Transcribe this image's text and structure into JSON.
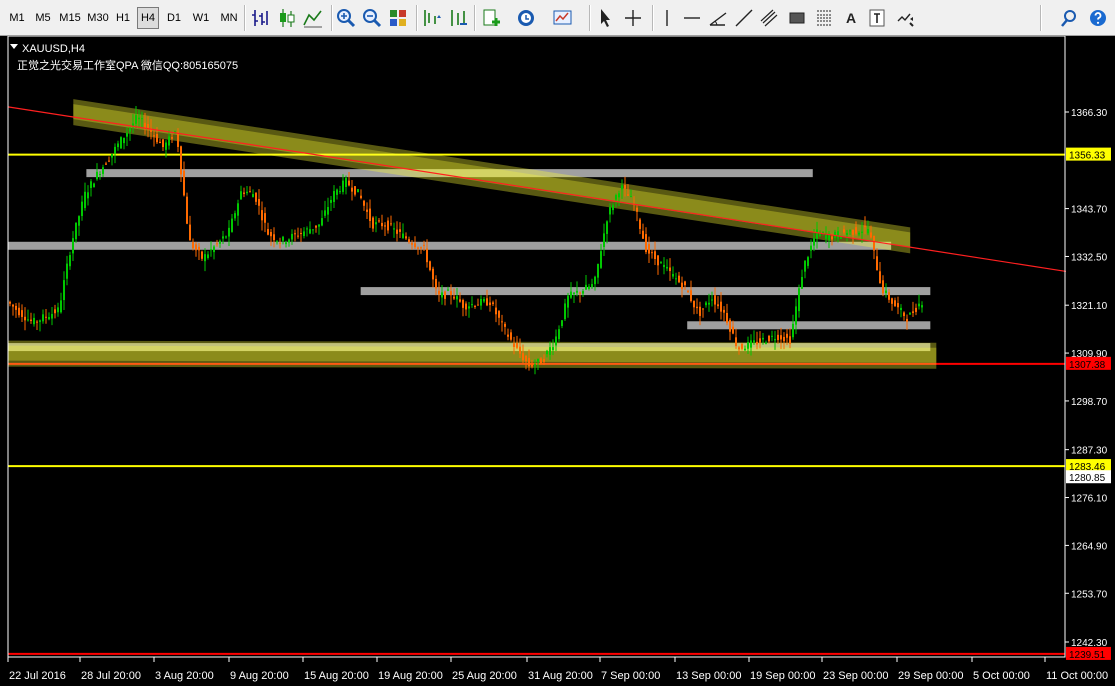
{
  "toolbar": {
    "timeframes": [
      {
        "label": "M1",
        "active": false
      },
      {
        "label": "M5",
        "active": false
      },
      {
        "label": "M15",
        "active": false
      },
      {
        "label": "M30",
        "active": false
      },
      {
        "label": "H1",
        "active": false
      },
      {
        "label": "H4",
        "active": true
      },
      {
        "label": "D1",
        "active": false
      },
      {
        "label": "W1",
        "active": false
      },
      {
        "label": "MN",
        "active": false
      }
    ],
    "tools": [
      "bar-chart-icon",
      "candlestick-icon",
      "line-chart-icon",
      "zoom-in-icon",
      "zoom-out-icon",
      "tile-windows-icon",
      "chart-shift-icon",
      "auto-scroll-icon",
      "indicators-icon",
      "periods-icon",
      "templates-icon",
      "cursor-icon",
      "crosshair-icon",
      "vertical-line-icon",
      "horizontal-line-icon",
      "angle-line-icon",
      "trend-line-icon",
      "equidistant-channel-icon",
      "rectangle-icon",
      "fibonacci-icon",
      "text-icon",
      "text-label-icon",
      "arrows-icon",
      "search-icon",
      "help-icon"
    ],
    "text_tool_glyph": "A"
  },
  "chart_data": {
    "type": "candlestick",
    "symbol_title": "XAUUSD,H4",
    "watermark_text": "正觉之光交易工作室QPA 微信QQ:805165075",
    "y_ticks": [
      "1366.30",
      "1343.70",
      "1332.50",
      "1321.10",
      "1309.90",
      "1298.70",
      "1287.30",
      "1276.10",
      "1264.90",
      "1253.70",
      "1242.30"
    ],
    "x_ticks": [
      "22 Jul 2016",
      "28 Jul 20:00",
      "3 Aug 20:00",
      "9 Aug 20:00",
      "15 Aug 20:00",
      "19 Aug 20:00",
      "25 Aug 20:00",
      "31 Aug 20:00",
      "7 Sep 00:00",
      "13 Sep 00:00",
      "19 Sep 00:00",
      "23 Sep 00:00",
      "29 Sep 00:00",
      "5 Oct 00:00",
      "11 Oct 00:00"
    ],
    "price_tags": [
      {
        "value": "1356.33",
        "bg": "#ffff00",
        "color": "#000000"
      },
      {
        "value": "1307.38",
        "bg": "#ff0000",
        "color": "#000000"
      },
      {
        "value": "1283.46",
        "bg": "#ffff00",
        "color": "#000000"
      },
      {
        "value": "1280.85",
        "bg": "#ffffff",
        "color": "#000000"
      },
      {
        "value": "1239.51",
        "bg": "#ff0000",
        "color": "#000000"
      }
    ],
    "horizontal_lines": [
      {
        "price": 1356.33,
        "color": "#ffff00"
      },
      {
        "price": 1307.38,
        "color": "#ff0000"
      },
      {
        "price": 1283.46,
        "color": "#ffff00"
      },
      {
        "price": 1239.51,
        "color": "#ff0000"
      }
    ],
    "support_resistance_zones": [
      {
        "price": 1352.0,
        "from": "28 Jul 2016",
        "to": "21 Sep 2016",
        "color": "#a0a0a0"
      },
      {
        "price": 1335.0,
        "from": "22 Jul 2016",
        "to": "27 Sep 2016",
        "color": "#a0a0a0"
      },
      {
        "price": 1324.4,
        "from": "18 Aug 2016",
        "to": "30 Sep 2016",
        "color": "#a0a0a0"
      },
      {
        "price": 1316.4,
        "from": "12 Sep 2016",
        "to": "30 Sep 2016",
        "color": "#a0a0a0"
      },
      {
        "price": 1311.3,
        "from": "22 Jul 2016",
        "to": "30 Sep 2016",
        "color": "#a0a0a0"
      }
    ],
    "trend_line": {
      "from": {
        "date": "22 Jul 2016",
        "price": 1367.5
      },
      "to": {
        "date": "11 Oct 2016",
        "price": 1329.0
      },
      "color": "#ff2020"
    },
    "channel_highlights": [
      {
        "from": {
          "date": "27 Jul 2016",
          "price": 1366.5
        },
        "to": {
          "date": "28 Sep 2016",
          "price": 1336.5
        },
        "color": "#ffff33"
      },
      {
        "from": {
          "date": "22 Jul 2016",
          "price": 1310.0
        },
        "to": {
          "date": "30 Sep 2016",
          "price": 1309.5
        },
        "color": "#ffff33"
      }
    ],
    "colors": {
      "bull": "#00c800",
      "bear": "#ff6a00",
      "background": "#000000",
      "axis": "#ffffff"
    },
    "ohlc_close_path": [
      {
        "date": "22 Jul 2016",
        "price": 1322
      },
      {
        "date": "24 Jul 2016",
        "price": 1317
      },
      {
        "date": "26 Jul 2016",
        "price": 1320
      },
      {
        "date": "27 Jul 2016",
        "price": 1336
      },
      {
        "date": "28 Jul 2016",
        "price": 1347
      },
      {
        "date": "29 Jul 2016",
        "price": 1352
      },
      {
        "date": "1 Aug 2016",
        "price": 1365
      },
      {
        "date": "2 Aug 2016",
        "price": 1362
      },
      {
        "date": "3 Aug 2016",
        "price": 1358
      },
      {
        "date": "4 Aug 2016",
        "price": 1362
      },
      {
        "date": "5 Aug 2016",
        "price": 1336
      },
      {
        "date": "6 Aug 2016",
        "price": 1332
      },
      {
        "date": "8 Aug 2016",
        "price": 1338
      },
      {
        "date": "9 Aug 2016",
        "price": 1348
      },
      {
        "date": "10 Aug 2016",
        "price": 1347
      },
      {
        "date": "11 Aug 2016",
        "price": 1338
      },
      {
        "date": "12 Aug 2016",
        "price": 1336
      },
      {
        "date": "15 Aug 2016",
        "price": 1340
      },
      {
        "date": "16 Aug 2016",
        "price": 1347
      },
      {
        "date": "17 Aug 2016",
        "price": 1350
      },
      {
        "date": "18 Aug 2016",
        "price": 1347
      },
      {
        "date": "19 Aug 2016",
        "price": 1340
      },
      {
        "date": "20 Aug 2016",
        "price": 1340
      },
      {
        "date": "22 Aug 2016",
        "price": 1336
      },
      {
        "date": "23 Aug 2016",
        "price": 1334
      },
      {
        "date": "24 Aug 2016",
        "price": 1323
      },
      {
        "date": "25 Aug 2016",
        "price": 1324
      },
      {
        "date": "26 Aug 2016",
        "price": 1321
      },
      {
        "date": "28 Aug 2016",
        "price": 1322
      },
      {
        "date": "29 Aug 2016",
        "price": 1316
      },
      {
        "date": "30 Aug 2016",
        "price": 1311
      },
      {
        "date": "31 Aug 2016",
        "price": 1307
      },
      {
        "date": "1 Sep 2016",
        "price": 1308
      },
      {
        "date": "2 Sep 2016",
        "price": 1313
      },
      {
        "date": "3 Sep 2016",
        "price": 1323
      },
      {
        "date": "5 Sep 2016",
        "price": 1326
      },
      {
        "date": "6 Sep 2016",
        "price": 1342
      },
      {
        "date": "7 Sep 2016",
        "price": 1349
      },
      {
        "date": "8 Sep 2016",
        "price": 1345
      },
      {
        "date": "9 Sep 2016",
        "price": 1334
      },
      {
        "date": "11 Sep 2016",
        "price": 1328
      },
      {
        "date": "12 Sep 2016",
        "price": 1325
      },
      {
        "date": "13 Sep 2016",
        "price": 1319
      },
      {
        "date": "14 Sep 2016",
        "price": 1323
      },
      {
        "date": "15 Sep 2016",
        "price": 1319
      },
      {
        "date": "16 Sep 2016",
        "price": 1311
      },
      {
        "date": "17 Sep 2016",
        "price": 1312
      },
      {
        "date": "19 Sep 2016",
        "price": 1314
      },
      {
        "date": "20 Sep 2016",
        "price": 1313
      },
      {
        "date": "21 Sep 2016",
        "price": 1330
      },
      {
        "date": "22 Sep 2016",
        "price": 1338
      },
      {
        "date": "23 Sep 2016",
        "price": 1337
      },
      {
        "date": "24 Sep 2016",
        "price": 1338
      },
      {
        "date": "26 Sep 2016",
        "price": 1339
      },
      {
        "date": "27 Sep 2016",
        "price": 1325
      },
      {
        "date": "28 Sep 2016",
        "price": 1321
      },
      {
        "date": "29 Sep 2016",
        "price": 1318
      },
      {
        "date": "30 Sep 2016",
        "price": 1322
      }
    ]
  }
}
